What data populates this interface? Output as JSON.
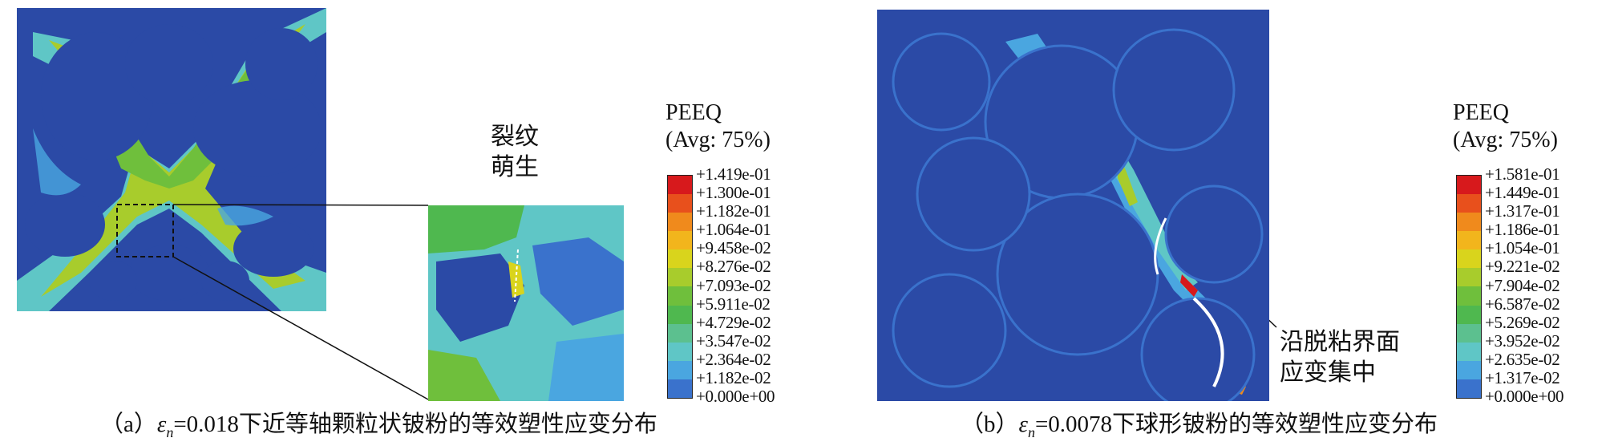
{
  "panel_a": {
    "annotation": [
      "裂纹",
      "萌生"
    ],
    "legend": {
      "title_line1": "PEEQ",
      "title_line2": "(Avg: 75%)",
      "values": [
        "+1.419e-01",
        "+1.300e-01",
        "+1.182e-01",
        "+1.064e-01",
        "+9.458e-02",
        "+8.276e-02",
        "+7.093e-02",
        "+5.911e-02",
        "+4.729e-02",
        "+3.547e-02",
        "+2.364e-02",
        "+1.182e-02",
        "+0.000e+00"
      ]
    },
    "caption_pre": "（a）",
    "caption_eps": "ε",
    "caption_sub": "n",
    "caption_post": "=0.018下近等轴颗粒状铍粉的等效塑性应变分布"
  },
  "panel_b": {
    "annotation": [
      "沿脱粘界面",
      "应变集中"
    ],
    "legend": {
      "title_line1": "PEEQ",
      "title_line2": "(Avg: 75%)",
      "values": [
        "+1.581e-01",
        "+1.449e-01",
        "+1.317e-01",
        "+1.186e-01",
        "+1.054e-01",
        "+9.221e-02",
        "+7.904e-02",
        "+6.587e-02",
        "+5.269e-02",
        "+3.952e-02",
        "+2.635e-02",
        "+1.317e-02",
        "+0.000e+00"
      ]
    },
    "caption_pre": "（b）",
    "caption_eps": "ε",
    "caption_sub": "n",
    "caption_post": "=0.0078下球形铍粉的等效塑性应变分布"
  },
  "colors": {
    "contour_scale": [
      "#d7191c",
      "#e8501c",
      "#f08a1c",
      "#f2b51c",
      "#d9d41c",
      "#a8cc2c",
      "#6fbf3c",
      "#4fb84f",
      "#5cc08f",
      "#5fc6c6",
      "#4aa6e0",
      "#3a72cc",
      "#2b4aa6"
    ],
    "background_blue": "#2b4aa6"
  }
}
